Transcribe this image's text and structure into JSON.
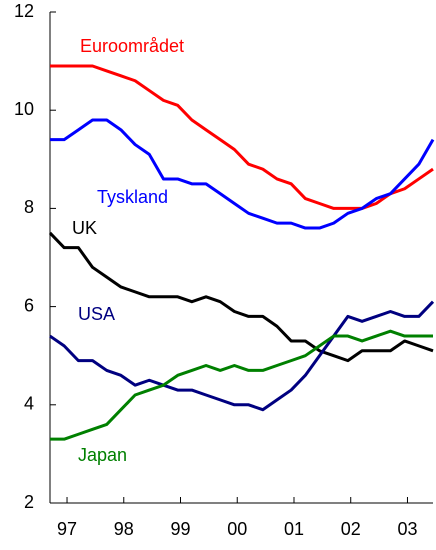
{
  "chart_data": {
    "type": "line",
    "x": [
      1996.7,
      1996.95,
      1997.2,
      1997.45,
      1997.7,
      1997.95,
      1998.2,
      1998.45,
      1998.7,
      1998.95,
      1999.2,
      1999.45,
      1999.7,
      1999.95,
      2000.2,
      2000.45,
      2000.7,
      2000.95,
      2001.2,
      2001.45,
      2001.7,
      2001.95,
      2002.2,
      2002.45,
      2002.7,
      2002.95,
      2003.2,
      2003.45
    ],
    "series": [
      {
        "name": "Euroområdet",
        "color": "#ff0000",
        "values": [
          10.9,
          10.9,
          10.9,
          10.9,
          10.8,
          10.7,
          10.6,
          10.4,
          10.2,
          10.1,
          9.8,
          9.6,
          9.4,
          9.2,
          8.9,
          8.8,
          8.6,
          8.5,
          8.2,
          8.1,
          8.0,
          8.0,
          8.0,
          8.1,
          8.3,
          8.4,
          8.6,
          8.8
        ]
      },
      {
        "name": "Tyskland",
        "color": "#0000ff",
        "values": [
          9.4,
          9.4,
          9.6,
          9.8,
          9.8,
          9.6,
          9.3,
          9.1,
          8.6,
          8.6,
          8.5,
          8.5,
          8.3,
          8.1,
          7.9,
          7.8,
          7.7,
          7.7,
          7.6,
          7.6,
          7.7,
          7.9,
          8.0,
          8.2,
          8.3,
          8.6,
          8.9,
          9.4
        ]
      },
      {
        "name": "UK",
        "color": "#000000",
        "values": [
          7.5,
          7.2,
          7.2,
          6.8,
          6.6,
          6.4,
          6.3,
          6.2,
          6.2,
          6.2,
          6.1,
          6.2,
          6.1,
          5.9,
          5.8,
          5.8,
          5.6,
          5.3,
          5.3,
          5.1,
          5.0,
          4.9,
          5.1,
          5.1,
          5.1,
          5.3,
          5.2,
          5.1
        ]
      },
      {
        "name": "USA",
        "color": "#000080",
        "values": [
          5.4,
          5.2,
          4.9,
          4.9,
          4.7,
          4.6,
          4.4,
          4.5,
          4.4,
          4.3,
          4.3,
          4.2,
          4.1,
          4.0,
          4.0,
          3.9,
          4.1,
          4.3,
          4.6,
          5.0,
          5.4,
          5.8,
          5.7,
          5.8,
          5.9,
          5.8,
          5.8,
          6.1
        ]
      },
      {
        "name": "Japan",
        "color": "#008000",
        "values": [
          3.3,
          3.3,
          3.4,
          3.5,
          3.6,
          3.9,
          4.2,
          4.3,
          4.4,
          4.6,
          4.7,
          4.8,
          4.7,
          4.8,
          4.7,
          4.7,
          4.8,
          4.9,
          5.0,
          5.2,
          5.4,
          5.4,
          5.3,
          5.4,
          5.5,
          5.4,
          5.4,
          5.4
        ]
      }
    ],
    "xlim": [
      1996.7,
      2003.45
    ],
    "xticks": [
      {
        "value": 1997,
        "label": "97"
      },
      {
        "value": 1998,
        "label": "98"
      },
      {
        "value": 1999,
        "label": "99"
      },
      {
        "value": 2000,
        "label": "00"
      },
      {
        "value": 2001,
        "label": "01"
      },
      {
        "value": 2002,
        "label": "02"
      },
      {
        "value": 2003,
        "label": "03"
      }
    ],
    "ylim": [
      2,
      12
    ],
    "yticks": [
      2,
      4,
      6,
      8,
      10,
      12
    ],
    "grid": false
  }
}
